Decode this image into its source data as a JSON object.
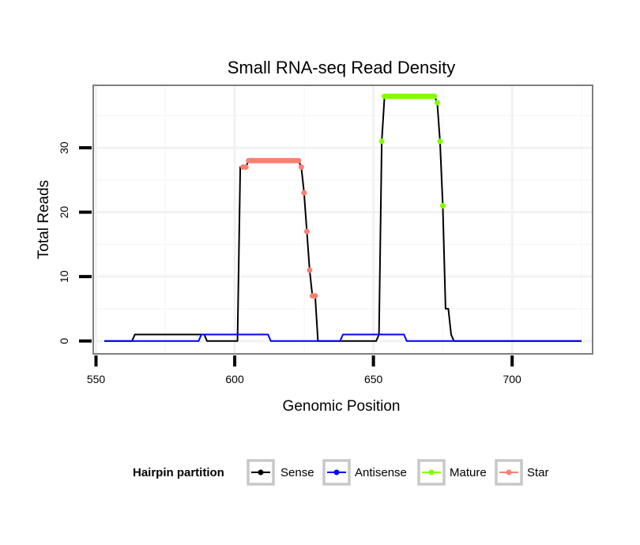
{
  "chart_data": {
    "type": "line",
    "title": "Small RNA-seq Read Density",
    "xlabel": "Genomic Position",
    "ylabel": "Total Reads",
    "xlim": [
      549,
      729
    ],
    "ylim": [
      -2,
      39.7
    ],
    "xticks": [
      550,
      600,
      650,
      700
    ],
    "yticks": [
      0,
      10,
      20,
      30
    ],
    "grid": true,
    "legend": {
      "title": "Hairpin partition",
      "position": "bottom",
      "entries": [
        {
          "name": "Sense",
          "color": "#000000"
        },
        {
          "name": "Antisense",
          "color": "#0000ff"
        },
        {
          "name": "Mature",
          "color": "#7fff00"
        },
        {
          "name": "Star",
          "color": "#fa8072"
        }
      ]
    },
    "series": [
      {
        "name": "Sense",
        "color": "#000000",
        "points": [
          [
            553,
            0
          ],
          [
            563,
            0
          ],
          [
            564,
            1
          ],
          [
            588,
            1
          ],
          [
            589,
            1
          ],
          [
            590,
            0
          ],
          [
            601,
            0
          ],
          [
            602,
            27
          ],
          [
            604,
            27
          ],
          [
            605,
            28
          ],
          [
            623,
            28
          ],
          [
            624,
            27
          ],
          [
            625,
            23
          ],
          [
            626,
            17
          ],
          [
            627,
            11
          ],
          [
            628,
            7
          ],
          [
            629,
            7
          ],
          [
            630,
            0
          ],
          [
            651,
            0
          ],
          [
            652,
            1
          ],
          [
            653,
            31
          ],
          [
            654,
            38
          ],
          [
            672,
            38
          ],
          [
            673,
            37
          ],
          [
            674,
            31
          ],
          [
            675,
            21
          ],
          [
            676,
            5
          ],
          [
            677,
            5
          ],
          [
            678,
            1
          ],
          [
            679,
            0
          ],
          [
            725,
            0
          ]
        ]
      },
      {
        "name": "Antisense",
        "color": "#0000ff",
        "points": [
          [
            553,
            0
          ],
          [
            587,
            0
          ],
          [
            588,
            1
          ],
          [
            612,
            1
          ],
          [
            613,
            0
          ],
          [
            638,
            0
          ],
          [
            639,
            1
          ],
          [
            661,
            1
          ],
          [
            662,
            0
          ],
          [
            725,
            0
          ]
        ]
      },
      {
        "name": "Mature",
        "color": "#7fff00",
        "points": [
          [
            653,
            31
          ],
          [
            654,
            38
          ],
          [
            655,
            38
          ],
          [
            656,
            38
          ],
          [
            657,
            38
          ],
          [
            658,
            38
          ],
          [
            659,
            38
          ],
          [
            660,
            38
          ],
          [
            661,
            38
          ],
          [
            662,
            38
          ],
          [
            663,
            38
          ],
          [
            664,
            38
          ],
          [
            665,
            38
          ],
          [
            666,
            38
          ],
          [
            667,
            38
          ],
          [
            668,
            38
          ],
          [
            669,
            38
          ],
          [
            670,
            38
          ],
          [
            671,
            38
          ],
          [
            672,
            38
          ],
          [
            673,
            37
          ],
          [
            674,
            31
          ],
          [
            675,
            21
          ]
        ]
      },
      {
        "name": "Star",
        "color": "#fa8072",
        "points": [
          [
            603,
            27
          ],
          [
            604,
            27
          ],
          [
            605,
            28
          ],
          [
            606,
            28
          ],
          [
            607,
            28
          ],
          [
            608,
            28
          ],
          [
            609,
            28
          ],
          [
            610,
            28
          ],
          [
            611,
            28
          ],
          [
            612,
            28
          ],
          [
            613,
            28
          ],
          [
            614,
            28
          ],
          [
            615,
            28
          ],
          [
            616,
            28
          ],
          [
            617,
            28
          ],
          [
            618,
            28
          ],
          [
            619,
            28
          ],
          [
            620,
            28
          ],
          [
            621,
            28
          ],
          [
            622,
            28
          ],
          [
            623,
            28
          ],
          [
            624,
            27
          ],
          [
            625,
            23
          ],
          [
            626,
            17
          ],
          [
            627,
            11
          ],
          [
            628,
            7
          ],
          [
            629,
            7
          ]
        ]
      }
    ]
  }
}
